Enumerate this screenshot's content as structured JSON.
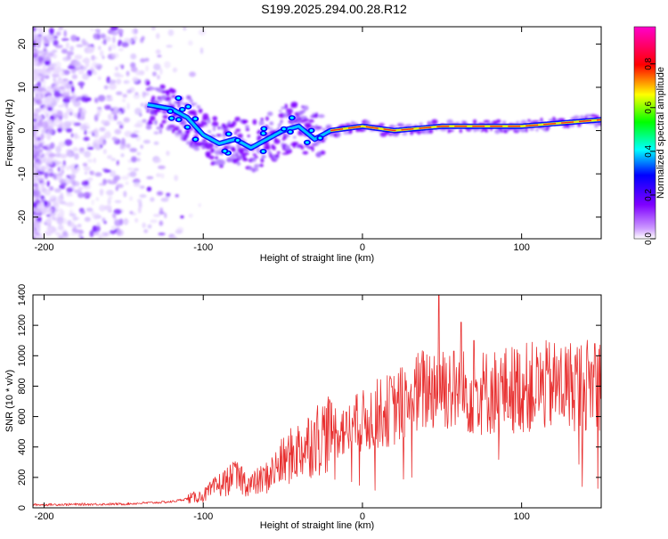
{
  "title": "S199.2025.294.00.28.R12",
  "colors": {
    "snr_line": "#e83030",
    "axis": "#000000"
  },
  "chart_data": [
    {
      "type": "heatmap",
      "name": "spectrogram",
      "xlabel": "Height of straight line (km)",
      "ylabel": "Frequency (Hz)",
      "xlim": [
        -207,
        150
      ],
      "ylim": [
        -25,
        24
      ],
      "xticks": [
        -200,
        -100,
        0,
        100
      ],
      "yticks": [
        -20,
        -10,
        0,
        10,
        20
      ],
      "colorbar": {
        "label": "Normalized spectral amplitude",
        "range": [
          0,
          0.97
        ],
        "ticks": [
          "0.0",
          "0.2",
          "0.4",
          "0.6",
          "0.8"
        ]
      },
      "ridge": [
        {
          "x": -135,
          "y": 6
        },
        {
          "x": -120,
          "y": 5
        },
        {
          "x": -110,
          "y": 3
        },
        {
          "x": -100,
          "y": -1
        },
        {
          "x": -90,
          "y": -3
        },
        {
          "x": -80,
          "y": -2
        },
        {
          "x": -70,
          "y": -4
        },
        {
          "x": -60,
          "y": -2
        },
        {
          "x": -50,
          "y": 0
        },
        {
          "x": -40,
          "y": 1
        },
        {
          "x": -30,
          "y": -2
        },
        {
          "x": -20,
          "y": 0
        },
        {
          "x": 0,
          "y": 1
        },
        {
          "x": 20,
          "y": 0
        },
        {
          "x": 50,
          "y": 1
        },
        {
          "x": 100,
          "y": 1
        },
        {
          "x": 150,
          "y": 2.5
        }
      ]
    },
    {
      "type": "line",
      "name": "snr",
      "xlabel": "Height of straight line (km)",
      "ylabel": "SNR (10 * v/v)",
      "xlim": [
        -207,
        150
      ],
      "ylim": [
        0,
        1400
      ],
      "xticks": [
        -200,
        -100,
        0,
        100
      ],
      "yticks": [
        0,
        200,
        400,
        600,
        800,
        1000,
        1200,
        1400
      ],
      "envelope": [
        {
          "x": -207,
          "y": 20
        },
        {
          "x": -150,
          "y": 25
        },
        {
          "x": -120,
          "y": 40
        },
        {
          "x": -100,
          "y": 80
        },
        {
          "x": -90,
          "y": 150
        },
        {
          "x": -80,
          "y": 200
        },
        {
          "x": -70,
          "y": 150
        },
        {
          "x": -60,
          "y": 200
        },
        {
          "x": -50,
          "y": 300
        },
        {
          "x": -40,
          "y": 380
        },
        {
          "x": -30,
          "y": 450
        },
        {
          "x": -20,
          "y": 500
        },
        {
          "x": -10,
          "y": 520
        },
        {
          "x": 0,
          "y": 560
        },
        {
          "x": 10,
          "y": 620
        },
        {
          "x": 20,
          "y": 650
        },
        {
          "x": 30,
          "y": 720
        },
        {
          "x": 40,
          "y": 780
        },
        {
          "x": 50,
          "y": 820
        },
        {
          "x": 60,
          "y": 760
        },
        {
          "x": 80,
          "y": 760
        },
        {
          "x": 100,
          "y": 790
        },
        {
          "x": 120,
          "y": 800
        },
        {
          "x": 150,
          "y": 820
        }
      ],
      "peaks": [
        {
          "x": -81,
          "y": 290
        },
        {
          "x": -76,
          "y": 270
        },
        {
          "x": -30,
          "y": 560
        },
        {
          "x": -10,
          "y": 630
        },
        {
          "x": 18,
          "y": 850
        },
        {
          "x": 48,
          "y": 1400
        },
        {
          "x": 62,
          "y": 1220
        },
        {
          "x": 70,
          "y": 1100
        },
        {
          "x": 146,
          "y": 1080
        }
      ]
    }
  ]
}
